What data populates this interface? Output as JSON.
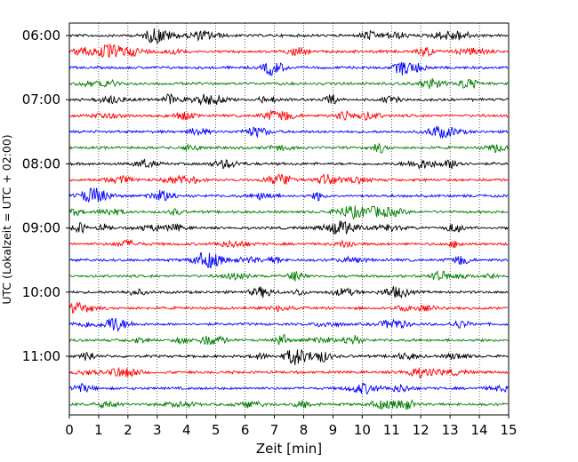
{
  "chart_data": {
    "type": "line",
    "title": "",
    "xlabel": "Zeit  [min]",
    "ylabel": "UTC (Lokalzeit = UTC + 02:00)",
    "xlim": [
      0,
      15
    ],
    "x_ticks": [
      "0",
      "1",
      "2",
      "3",
      "4",
      "5",
      "6",
      "7",
      "8",
      "9",
      "10",
      "11",
      "12",
      "13",
      "14",
      "15"
    ],
    "y_tick_labels": [
      "06:00",
      "07:00",
      "08:00",
      "09:00",
      "10:00",
      "11:00"
    ],
    "grid": "vertical dotted lines at each minute",
    "trace_count": 24,
    "trace_interval_minutes": 15,
    "first_trace_utc": "06:00",
    "last_trace_utc": "11:45",
    "trace_colors": [
      "#000000",
      "#ff0000",
      "#0000ff",
      "#007f00"
    ]
  }
}
